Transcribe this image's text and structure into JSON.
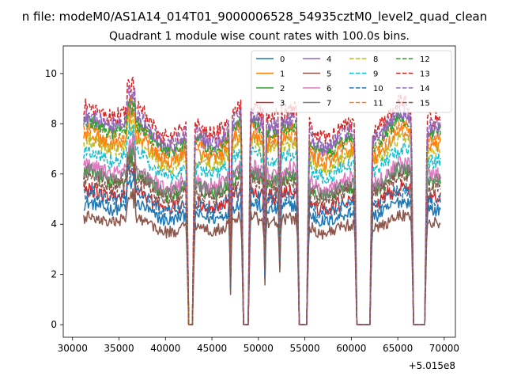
{
  "chart_data": {
    "type": "line",
    "suptitle": "n file: modeM0/AS1A14_014T01_9000006528_54935cztM0_level2_quad_clean",
    "title": "Quadrant 1 module wise count rates with 100.0s bins.",
    "xlabel": "",
    "ylabel": "",
    "x_offset_label": "+5.015e8",
    "xlim": [
      29000,
      71200
    ],
    "ylim": [
      -0.5,
      11.1
    ],
    "xticks": [
      30000,
      35000,
      40000,
      45000,
      50000,
      55000,
      60000,
      65000,
      70000
    ],
    "xtick_labels": [
      "30000",
      "35000",
      "40000",
      "45000",
      "50000",
      "55000",
      "60000",
      "65000",
      "70000"
    ],
    "yticks": [
      0,
      2,
      4,
      6,
      8,
      10
    ],
    "ytick_labels": [
      "0",
      "2",
      "4",
      "6",
      "8",
      "10"
    ],
    "grid": false,
    "legend_location": "upper right",
    "legend_columns": 4,
    "time_range": [
      31200,
      69600
    ],
    "bin_width": 100,
    "gaps": [
      {
        "start": 42500,
        "end": 42900
      },
      {
        "start": 48400,
        "end": 48900
      },
      {
        "start": 54400,
        "end": 55200
      },
      {
        "start": 60600,
        "end": 62000
      },
      {
        "start": 66700,
        "end": 67900
      }
    ],
    "dips": [
      {
        "x": 47000,
        "depth": 0.3
      },
      {
        "x": 50700,
        "depth": 0.4
      },
      {
        "x": 52300,
        "depth": 0.5
      }
    ],
    "series": [
      {
        "name": "0",
        "color": "#1f77b4",
        "dashed": false,
        "mean": 4.5,
        "noise": 0.25
      },
      {
        "name": "1",
        "color": "#ff7f0e",
        "dashed": false,
        "mean": 7.0,
        "noise": 0.3
      },
      {
        "name": "2",
        "color": "#2ca02c",
        "dashed": false,
        "mean": 5.6,
        "noise": 0.3
      },
      {
        "name": "3",
        "color": "#d62728",
        "dashed": false,
        "mean": 5.0,
        "noise": 0.3
      },
      {
        "name": "4",
        "color": "#9467bd",
        "dashed": false,
        "mean": 7.6,
        "noise": 0.3
      },
      {
        "name": "5",
        "color": "#8c564b",
        "dashed": false,
        "mean": 4.0,
        "noise": 0.25
      },
      {
        "name": "6",
        "color": "#e377c2",
        "dashed": false,
        "mean": 5.9,
        "noise": 0.3
      },
      {
        "name": "7",
        "color": "#7f7f7f",
        "dashed": false,
        "mean": 5.7,
        "noise": 0.3
      },
      {
        "name": "8",
        "color": "#bcbd22",
        "dashed": true,
        "mean": 6.8,
        "noise": 0.3
      },
      {
        "name": "9",
        "color": "#17becf",
        "dashed": true,
        "mean": 6.4,
        "noise": 0.3
      },
      {
        "name": "10",
        "color": "#1f77b4",
        "dashed": true,
        "mean": 4.9,
        "noise": 0.3
      },
      {
        "name": "11",
        "color": "#ff7f0e",
        "dashed": true,
        "mean": 7.3,
        "noise": 0.3
      },
      {
        "name": "12",
        "color": "#2ca02c",
        "dashed": true,
        "mean": 7.5,
        "noise": 0.3
      },
      {
        "name": "13",
        "color": "#d62728",
        "dashed": true,
        "mean": 8.1,
        "noise": 0.35
      },
      {
        "name": "14",
        "color": "#9467bd",
        "dashed": true,
        "mean": 7.8,
        "noise": 0.3
      },
      {
        "name": "15",
        "color": "#8c564b",
        "dashed": true,
        "mean": 5.4,
        "noise": 0.3
      }
    ]
  }
}
